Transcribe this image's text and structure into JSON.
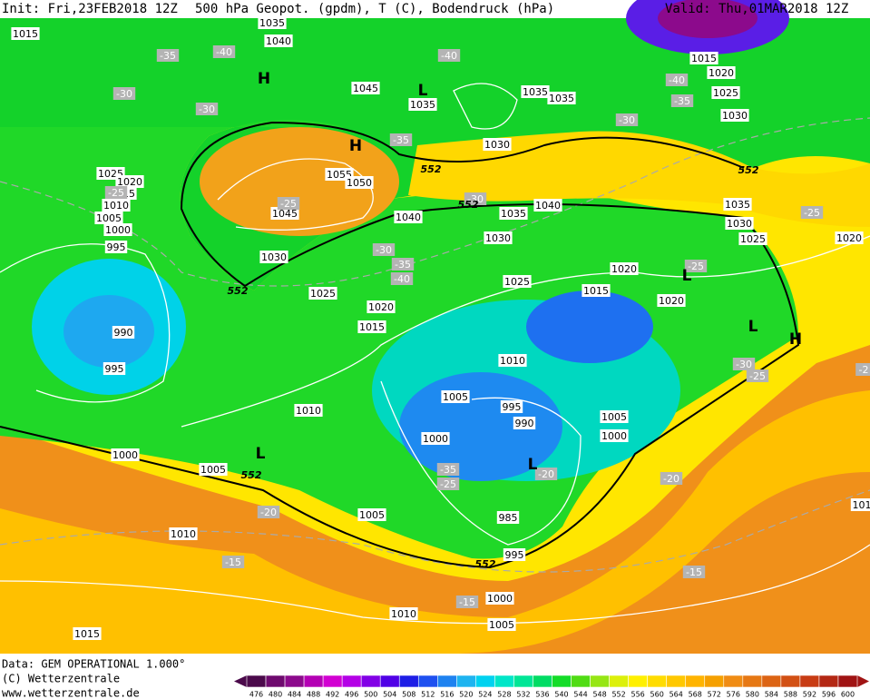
{
  "header": {
    "init": "Init: Fri,23FEB2018 12Z",
    "title": "500 hPa Geopot. (gpdm), T (C), Bodendruck (hPa)",
    "valid": "Valid: Thu,01MAR2018 12Z"
  },
  "map": {
    "labels": [
      "1015",
      "1035",
      "1040",
      "1045",
      "1035",
      "1035",
      "1035",
      "1015",
      "1020",
      "1025",
      "1030",
      "1030",
      "1025",
      "1020",
      "1015",
      "1010",
      "1005",
      "1000",
      "995",
      "1055",
      "1050",
      "1045",
      "1040",
      "1035",
      "1040",
      "1035",
      "1030",
      "1025",
      "1020",
      "1030",
      "1030",
      "1025",
      "1025",
      "1020",
      "1020",
      "1015",
      "1020",
      "1015",
      "990",
      "995",
      "1010",
      "1005",
      "995",
      "990",
      "1005",
      "1000",
      "1000",
      "1010",
      "1000",
      "1005",
      "1005",
      "985",
      "995",
      "1010",
      "1000",
      "1010",
      "1005",
      "1015",
      "101"
    ],
    "temperatures": [
      "-35",
      "-40",
      "-30",
      "-30",
      "-40",
      "-40",
      "-35",
      "-30",
      "-35",
      "-25",
      "-25",
      "-30",
      "-30",
      "-35",
      "-40",
      "-25",
      "-25",
      "-30",
      "-25",
      "-2",
      "-35",
      "-25",
      "-20",
      "-20",
      "-20",
      "-15",
      "-15",
      "-15"
    ],
    "contour_labels": [
      "552",
      "552",
      "552",
      "552",
      "552",
      "552"
    ],
    "centers": [
      "H",
      "L",
      "H",
      "L",
      "L",
      "H",
      "L",
      "L"
    ]
  },
  "footer": {
    "data": "Data: GEM OPERATIONAL 1.000°",
    "copyright": "(C) Wetterzentrale",
    "url": "www.wetterzentrale.de"
  },
  "colorbar": {
    "values": [
      476,
      480,
      484,
      488,
      492,
      496,
      500,
      504,
      508,
      512,
      516,
      520,
      524,
      528,
      532,
      536,
      540,
      544,
      548,
      552,
      556,
      560,
      564,
      568,
      572,
      576,
      580,
      584,
      588,
      592,
      596,
      600
    ],
    "colors": [
      "#4b0a4b",
      "#6e0a6e",
      "#8c0a8c",
      "#b400b4",
      "#d200d2",
      "#b400e6",
      "#8200e6",
      "#5000e6",
      "#1e1ee6",
      "#1e50f0",
      "#1e82f0",
      "#1eb4f0",
      "#00d2f0",
      "#00e6c8",
      "#00e696",
      "#00dc64",
      "#14dc28",
      "#50dc14",
      "#96e614",
      "#dcf00a",
      "#fff000",
      "#ffdc00",
      "#ffc800",
      "#ffb400",
      "#f5a000",
      "#f08c14",
      "#e67814",
      "#dc6414",
      "#d25014",
      "#c83c14",
      "#b42814",
      "#a01414"
    ]
  }
}
